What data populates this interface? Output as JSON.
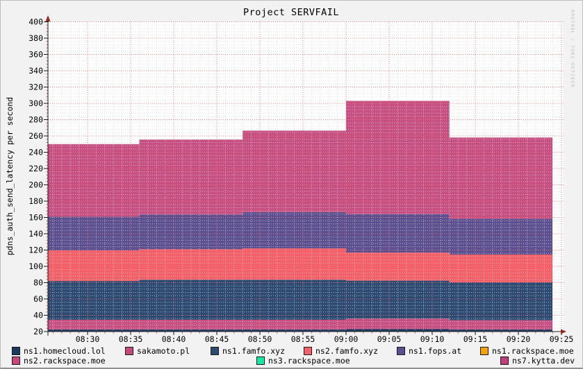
{
  "title": "Project SERVFAIL",
  "watermark": "RRDTOOL / TOBI OETIKER",
  "axes": {
    "y_label": "pdns_auth_send_latency per second",
    "y_ticks": [
      20,
      40,
      60,
      80,
      100,
      120,
      140,
      160,
      180,
      200,
      220,
      240,
      260,
      280,
      300,
      320,
      340,
      360,
      380,
      400
    ],
    "x_ticks": [
      "08:30",
      "08:35",
      "08:40",
      "08:45",
      "08:50",
      "08:55",
      "09:00",
      "09:05",
      "09:10",
      "09:15",
      "09:20",
      "09:25"
    ]
  },
  "legend": {
    "rows": [
      [
        {
          "label": "ns1.homecloud.lol",
          "color": "#1c3a5f"
        },
        {
          "label": "sakamoto.pl",
          "color": "#c6487f"
        },
        {
          "label": "ns1.famfo.xyz",
          "color": "#2d4b72"
        },
        {
          "label": "ns2.famfo.xyz",
          "color": "#f4606a"
        },
        {
          "label": "ns1.fops.at",
          "color": "#5c4f91"
        },
        {
          "label": "ns1.rackspace.moe",
          "color": "#f8a209"
        }
      ],
      [
        {
          "label": "ns2.rackspace.moe",
          "color": "#c6487f"
        },
        {
          "label": "ns3.rackspace.moe",
          "color": "#17e8a5"
        },
        {
          "label": "ns7.kytta.dev",
          "color": "#c23d79"
        }
      ]
    ]
  },
  "chart_data": {
    "type": "area",
    "stacked": true,
    "title": "Project SERVFAIL",
    "ylabel": "pdns_auth_send_latency per second",
    "ylim": [
      20,
      400
    ],
    "x_range": [
      "08:25",
      "09:24"
    ],
    "baseline": 20,
    "grid": {
      "minor_color": "#d5d5d5",
      "major_color": "#e9807f",
      "background": "#ffffff",
      "style": "dotted"
    },
    "legend_position": "bottom",
    "segments": [
      {
        "from": "08:25",
        "to": "08:36"
      },
      {
        "from": "08:36",
        "to": "08:48"
      },
      {
        "from": "08:48",
        "to": "09:00"
      },
      {
        "from": "09:00",
        "to": "09:12"
      },
      {
        "from": "09:12",
        "to": "09:24"
      }
    ],
    "series": [
      {
        "name": "ns1.homecloud.lol",
        "color": "#1d3b5e",
        "values": [
          2.5,
          2.5,
          2.5,
          3,
          2.5
        ]
      },
      {
        "name": "sakamoto.pl",
        "color": "#c74f82",
        "values": [
          12,
          12,
          12,
          13,
          11.5
        ]
      },
      {
        "name": "ns1.famfo.xyz",
        "color": "#2d4b72",
        "values": [
          47.5,
          49,
          49,
          46.5,
          46.5
        ]
      },
      {
        "name": "ns2.famfo.xyz",
        "color": "#f45f68",
        "values": [
          37.5,
          37.5,
          38.5,
          34.5,
          34
        ]
      },
      {
        "name": "ns1.fops.at",
        "color": "#5c5090",
        "values": [
          41.5,
          42.5,
          44.5,
          47,
          44
        ]
      },
      {
        "name": "ns1.rackspace.moe",
        "color": "#f8a209",
        "values": [
          0,
          0,
          0,
          0,
          0
        ]
      },
      {
        "name": "ns2.rackspace.moe",
        "color": "#c74f82",
        "values": [
          89,
          92,
          100,
          139,
          99.5
        ]
      },
      {
        "name": "ns3.rackspace.moe",
        "color": "#17e8a5",
        "values": [
          0,
          0,
          0,
          0,
          0
        ]
      },
      {
        "name": "ns7.kytta.dev",
        "color": "#c23d79",
        "values": [
          0,
          0,
          0,
          0,
          0
        ]
      }
    ],
    "stack_tops_note": "cumulative totals per segment: 250, 255.5, 266.5, 303, 258"
  }
}
